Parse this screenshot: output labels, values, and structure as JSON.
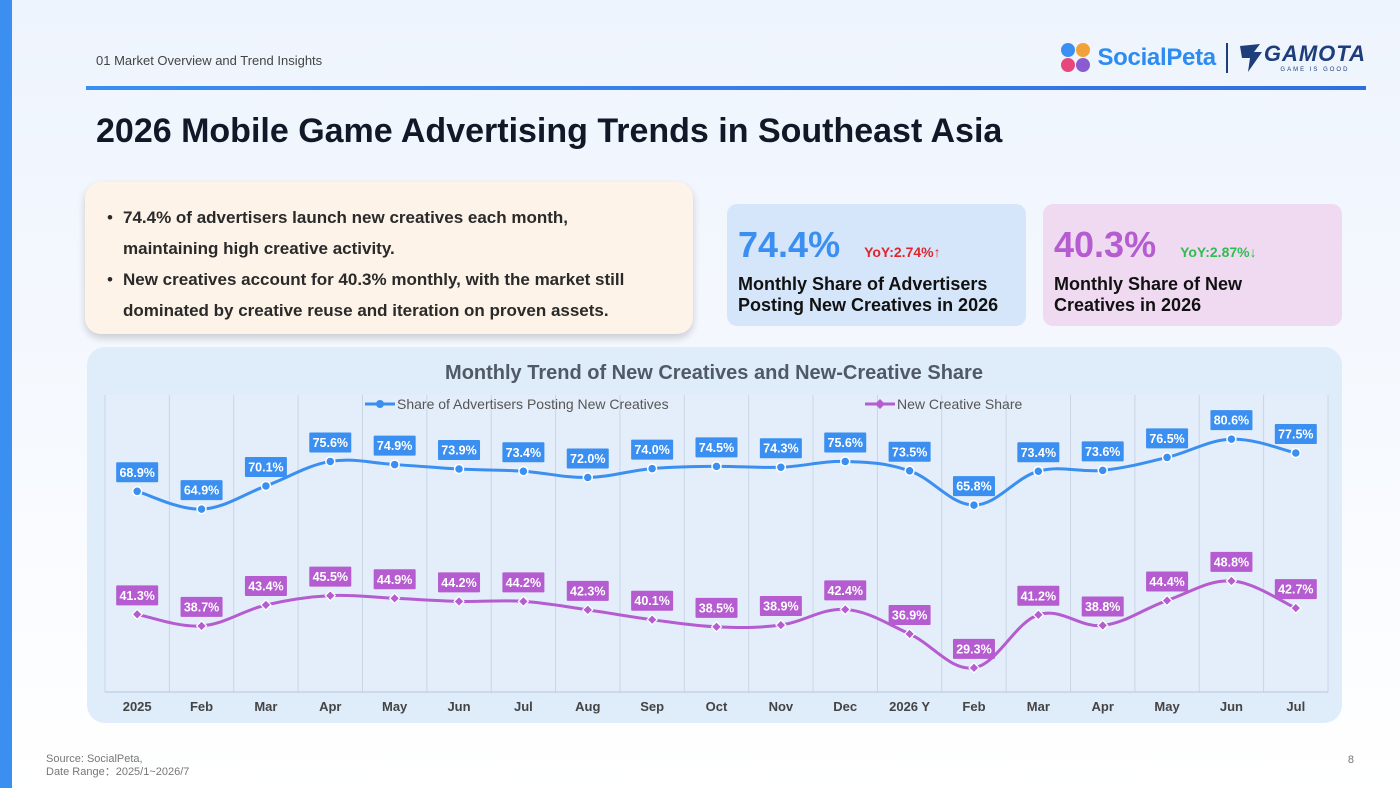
{
  "header": {
    "section": "01 Market Overview and Trend Insights",
    "logo_socialpeta": "SocialPeta",
    "logo_gamota": "GAMOTA",
    "logo_gamota_tagline": "GAME IS GOOD"
  },
  "title": "2026 Mobile Game Advertising Trends in Southeast Asia",
  "summary": {
    "bullets": [
      {
        "line1": "74.4% of advertisers launch new creatives each month,",
        "line2": "maintaining high creative activity."
      },
      {
        "line1": "New creatives account for 40.3% monthly, with the market still",
        "line2": "dominated by creative reuse and iteration on proven assets."
      }
    ]
  },
  "kpis": [
    {
      "value": "74.4%",
      "yoy": "YoY:2.74%↑",
      "label_line1": "Monthly Share of Advertisers",
      "label_line2": "Posting New Creatives in 2026",
      "yoy_color": "#e0262b"
    },
    {
      "value": "40.3%",
      "yoy": "YoY:2.87%↓",
      "label_line1": "Monthly Share of New",
      "label_line2": "Creatives in 2026",
      "yoy_color": "#2ebd4e"
    }
  ],
  "chart_data": {
    "type": "line",
    "title": "Monthly Trend of New Creatives and New-Creative Share",
    "categories": [
      "2025",
      "Feb",
      "Mar",
      "Apr",
      "May",
      "Jun",
      "Jul",
      "Aug",
      "Sep",
      "Oct",
      "Nov",
      "Dec",
      "2026 Y",
      "Feb",
      "Mar",
      "Apr",
      "May",
      "Jun",
      "Jul"
    ],
    "series": [
      {
        "name": "Share of Advertisers Posting New Creatives",
        "color": "#3a8ff0",
        "marker": "circle",
        "values": [
          68.9,
          64.9,
          70.1,
          75.6,
          74.9,
          73.9,
          73.4,
          72.0,
          74.0,
          74.5,
          74.3,
          75.6,
          73.5,
          65.8,
          73.4,
          73.6,
          76.5,
          80.6,
          77.5
        ],
        "labels": [
          "68.9%",
          "64.9%",
          "70.1%",
          "75.6%",
          "74.9%",
          "73.9%",
          "73.4%",
          "72.0%",
          "74.0%",
          "74.5%",
          "74.3%",
          "75.6%",
          "73.5%",
          "65.8%",
          "73.4%",
          "73.6%",
          "76.5%",
          "80.6%",
          "77.5%"
        ]
      },
      {
        "name": "New Creative Share",
        "color": "#b45cd0",
        "marker": "diamond",
        "values": [
          41.3,
          38.7,
          43.4,
          45.5,
          44.9,
          44.2,
          44.2,
          42.3,
          40.1,
          38.5,
          38.9,
          42.4,
          36.9,
          29.3,
          41.2,
          38.8,
          44.4,
          48.8,
          42.7
        ],
        "labels": [
          "41.3%",
          "38.7%",
          "43.4%",
          "45.5%",
          "44.9%",
          "44.2%",
          "44.2%",
          "42.3%",
          "40.1%",
          "38.5%",
          "38.9%",
          "42.4%",
          "36.9%",
          "29.3%",
          "41.2%",
          "38.8%",
          "44.4%",
          "48.8%",
          "42.7%"
        ]
      }
    ],
    "legend_position": "top",
    "grid": "vertical",
    "y_axis_visible": false
  },
  "footer": {
    "source_line1": "Source: SocialPeta,",
    "source_line2": "Date Range：2025/1~2026/7",
    "page": "8"
  },
  "colors": {
    "accent_blue": "#3a8ff0",
    "accent_purple": "#b45cd0",
    "summary_bg": "#fdf3e8",
    "chart_bg": "#dfecfa"
  }
}
